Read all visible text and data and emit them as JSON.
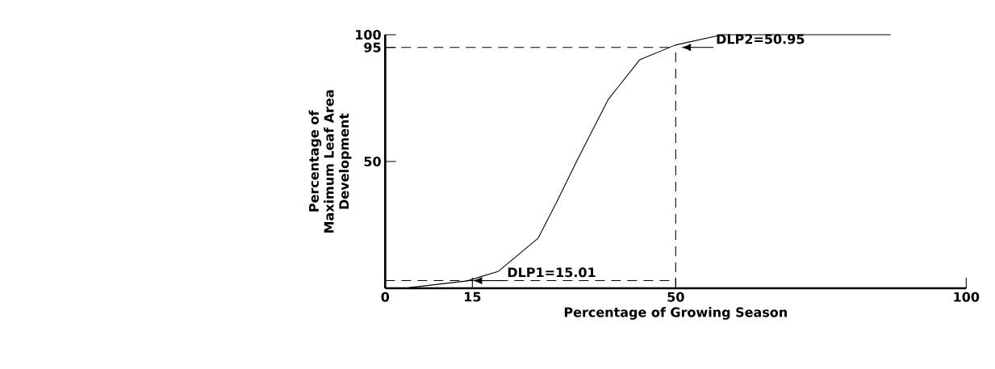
{
  "chart_data": {
    "type": "line",
    "xlabel": "Percentage of Growing Season",
    "ylabel": "Percentage of Maximum Leaf Area Development",
    "x": [
      4,
      14.1,
      19.5,
      26.3,
      29.6,
      33,
      38.4,
      43.8,
      49.9,
      58,
      87
    ],
    "series": [
      {
        "color": "#000000",
        "values": [
          0.2,
          2.9,
          6.7,
          19.7,
          34.4,
          50.3,
          74.5,
          90.1,
          95.9,
          100,
          100
        ]
      }
    ],
    "xlim": [
      0,
      100
    ],
    "ylim": [
      0,
      100
    ],
    "xticks": [
      0,
      15,
      50,
      100
    ],
    "yticks": [
      50,
      95,
      100
    ],
    "ref_lines": [
      {
        "axis": "y",
        "value": 95,
        "line_style": "dashed"
      },
      {
        "axis": "y",
        "value": 3,
        "line_style": "dashed"
      },
      {
        "axis": "x",
        "value": 50,
        "line_style": "dashed"
      }
    ],
    "annotations": [
      {
        "text": "DLP1=15.01",
        "x": 15.01,
        "y": 3
      },
      {
        "text": "DLP2=50.95",
        "x": 50.95,
        "y": 95
      }
    ],
    "grid": false,
    "marker": "none",
    "line_style": "solid"
  }
}
